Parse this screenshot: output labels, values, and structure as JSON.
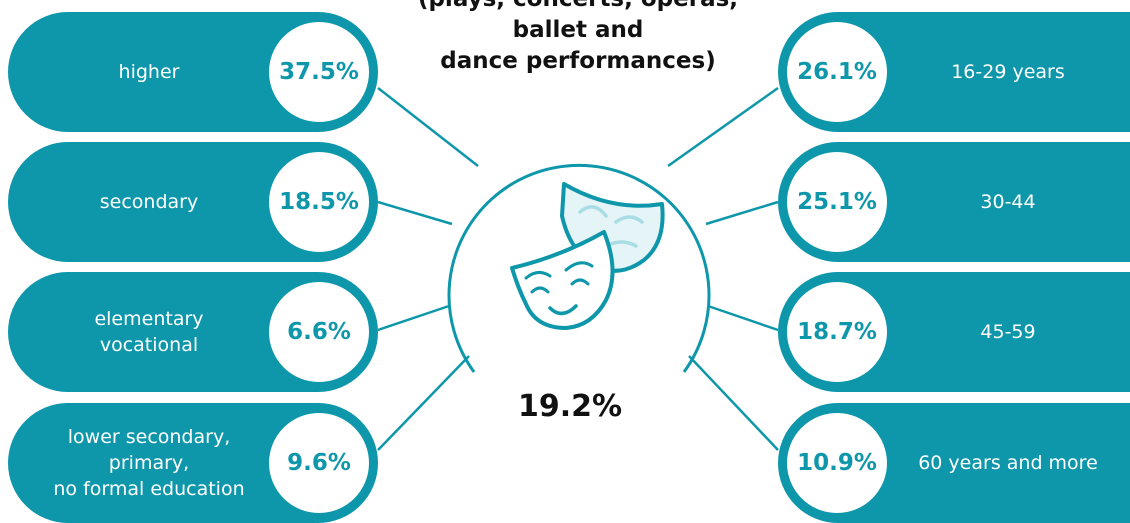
{
  "title": "(plays, concerts, operas,\nballet and\ndance performances)",
  "total_value": "19.2%",
  "accent_color": "#0e97aa",
  "center_icon": "theater-masks-icon",
  "education": [
    {
      "label": "higher",
      "value": "37.5%"
    },
    {
      "label": "secondary",
      "value": "18.5%"
    },
    {
      "label": "elementary\nvocational",
      "value": "6.6%"
    },
    {
      "label": "lower secondary,\nprimary,\nno formal education",
      "value": "9.6%"
    }
  ],
  "age": [
    {
      "label": "16-29 years",
      "value": "26.1%"
    },
    {
      "label": "30-44",
      "value": "25.1%"
    },
    {
      "label": "45-59",
      "value": "18.7%"
    },
    {
      "label": "60 years and more",
      "value": "10.9%"
    }
  ]
}
